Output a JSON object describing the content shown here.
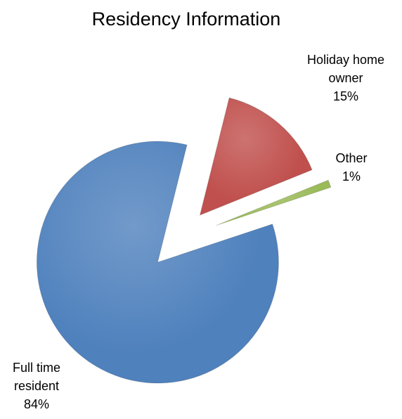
{
  "chart_data": {
    "type": "pie",
    "title": "Residency Information",
    "categories": [
      "Holiday home owner",
      "Other",
      "Full time resident"
    ],
    "values": [
      15,
      1,
      84
    ],
    "value_labels": [
      "15%",
      "1%",
      "84%"
    ],
    "colors": [
      "#c0504d",
      "#9bbb59",
      "#4f81bd"
    ]
  }
}
